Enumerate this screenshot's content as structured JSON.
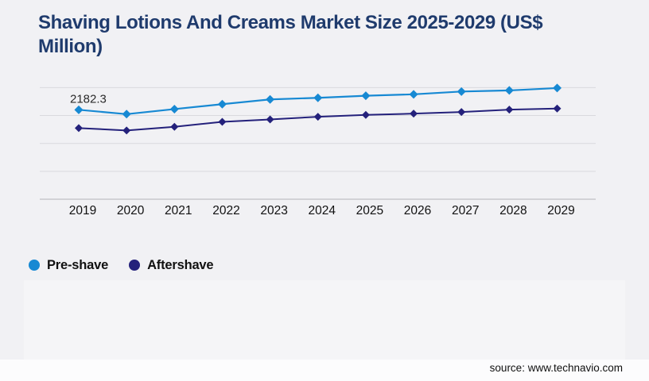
{
  "page": {
    "title": "Shaving Lotions And Creams Market Size 2025-2029 (US$ Million)",
    "source": "source: www.technavio.com"
  },
  "legend": {
    "items": [
      {
        "label": "Pre-shave",
        "color": "#1789d3",
        "marker": "circle-icon"
      },
      {
        "label": "Aftershave",
        "color": "#24217b",
        "marker": "circle-icon"
      }
    ]
  },
  "colors": {
    "background": "#f1f1f4",
    "title": "#1f3b6d",
    "gridline": "#d9d9dd",
    "axis_line": "#b3b3b8",
    "tick_label": "#111111",
    "data_label": "#2a2a2a"
  },
  "chart_data": {
    "type": "line",
    "title": "Shaving Lotions And Creams Market Size 2025-2029 (US$ Million)",
    "xlabel": "",
    "ylabel": "",
    "categories": [
      "2019",
      "2020",
      "2021",
      "2022",
      "2023",
      "2024",
      "2025",
      "2026",
      "2027",
      "2028",
      "2029"
    ],
    "series": [
      {
        "name": "Pre-shave",
        "color": "#1789d3",
        "marker": "diamond",
        "values": [
          2182.3,
          2120,
          2192,
          2263,
          2331,
          2354,
          2384,
          2404,
          2444,
          2460,
          2494
        ]
      },
      {
        "name": "Aftershave",
        "color": "#24217b",
        "marker": "diamond",
        "values": [
          1920,
          1886,
          1939,
          2010,
          2044,
          2082,
          2109,
          2127,
          2150,
          2184,
          2200
        ]
      }
    ],
    "data_labels": [
      {
        "series": "Pre-shave",
        "category": "2019",
        "text": "2182.3"
      }
    ],
    "ylim": [
      900,
      2500
    ],
    "gridline_count": 5,
    "grid": "horizontal-only",
    "y_axis_labels": false,
    "legend_position": "bottom-left",
    "note": "y-axis unlabeled; non-labeled values estimated from gridline positions"
  }
}
